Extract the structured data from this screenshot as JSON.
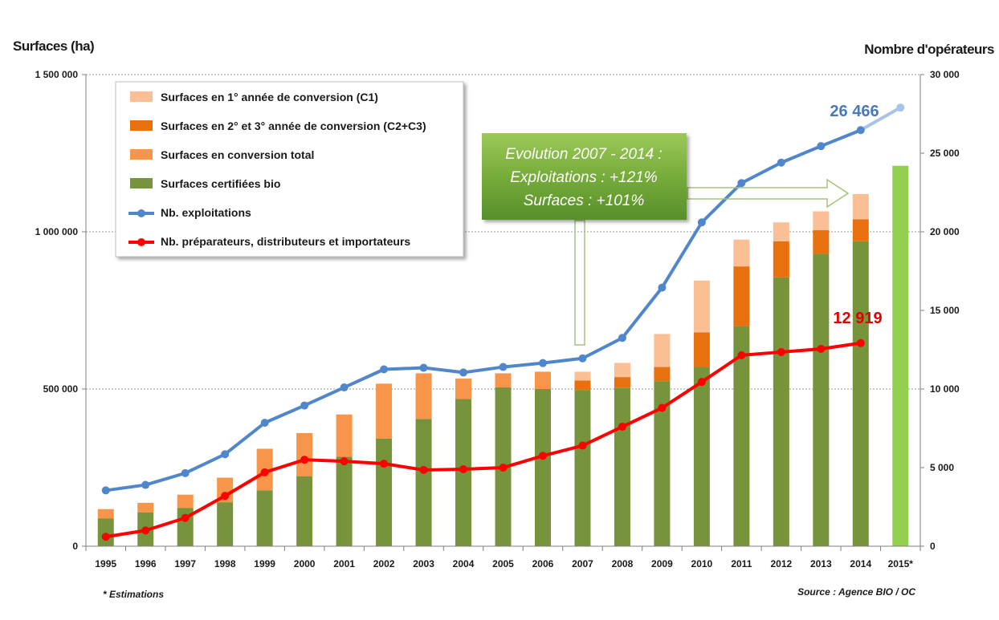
{
  "chart_data": {
    "type": "bar",
    "categories": [
      "1995",
      "1996",
      "1997",
      "1998",
      "1999",
      "2000",
      "2001",
      "2002",
      "2003",
      "2004",
      "2005",
      "2006",
      "2007",
      "2008",
      "2009",
      "2010",
      "2011",
      "2012",
      "2013",
      "2014",
      "2015*"
    ],
    "left_axis": {
      "title": "Surfaces (ha)",
      "min": 0,
      "max": 1500000,
      "ticks": [
        "0",
        "500 000",
        "1 000 000",
        "1 500 000"
      ],
      "tick_values": [
        0,
        500000,
        1000000,
        1500000
      ]
    },
    "right_axis": {
      "title": "Nombre d'opérateurs",
      "min": 0,
      "max": 30000,
      "ticks": [
        "0",
        "5 000",
        "10 000",
        "15 000",
        "20 000",
        "25 000",
        "30 000"
      ],
      "tick_values": [
        0,
        5000,
        10000,
        15000,
        20000,
        25000,
        30000
      ]
    },
    "grid": "horizontal",
    "legend_position": "top-left",
    "series": [
      {
        "name": "Surfaces en 1° année de conversion (C1)",
        "kind": "bar",
        "color": "#fbbf96",
        "values": [
          null,
          null,
          null,
          null,
          null,
          null,
          null,
          null,
          null,
          null,
          null,
          null,
          28000,
          45000,
          105000,
          165000,
          85000,
          60000,
          60000,
          80000,
          null
        ]
      },
      {
        "name": "Surfaces en 2° et 3° année de conversion (C2+C3)",
        "kind": "bar",
        "color": "#e8700f",
        "values": [
          null,
          null,
          null,
          null,
          null,
          null,
          null,
          null,
          null,
          null,
          null,
          null,
          30000,
          35000,
          45000,
          110000,
          190000,
          115000,
          75000,
          70000,
          null
        ]
      },
      {
        "name": "Surfaces en conversion total",
        "kind": "bar",
        "color": "#f7954a",
        "values": [
          30000,
          30000,
          42000,
          78000,
          132000,
          138000,
          134000,
          175000,
          145000,
          65000,
          45000,
          55000,
          null,
          null,
          null,
          null,
          null,
          null,
          null,
          null,
          null
        ]
      },
      {
        "name": "Surfaces certifiées bio",
        "kind": "bar",
        "color": "#77933c",
        "values": [
          88000,
          108000,
          122000,
          140000,
          178000,
          222000,
          285000,
          342000,
          405000,
          468000,
          505000,
          500000,
          497000,
          503000,
          525000,
          570000,
          700000,
          855000,
          930000,
          970000,
          1210000
        ]
      },
      {
        "name": "Nb. exploitations",
        "kind": "line",
        "color": "#4f86cc",
        "axis": "right",
        "values": [
          3550,
          3900,
          4650,
          5850,
          7850,
          8950,
          10100,
          11250,
          11350,
          11050,
          11400,
          11650,
          11950,
          13250,
          16450,
          20600,
          23100,
          24400,
          25450,
          26466,
          27900
        ]
      },
      {
        "name": "Nb. préparateurs, distributeurs et importateurs",
        "kind": "line",
        "color": "#ff0000",
        "axis": "right",
        "values": [
          600,
          1000,
          1800,
          3200,
          4700,
          5500,
          5400,
          5250,
          4850,
          4900,
          5000,
          5750,
          6400,
          7600,
          8800,
          10450,
          12150,
          12350,
          12550,
          12919,
          null
        ]
      }
    ],
    "annotations": {
      "value_blue": "26 466",
      "value_red": "12 919",
      "callout_lines": [
        "Evolution 2007 - 2014 :",
        "Exploitations : +121%",
        "Surfaces : +101%"
      ],
      "footnote": "* Estimations",
      "source": "Source : Agence BIO / OC"
    },
    "colors": {
      "bio_2015_estimate": "#92d050",
      "callout_bg": "#6aa02e",
      "grid": "#9a9a9a"
    }
  }
}
